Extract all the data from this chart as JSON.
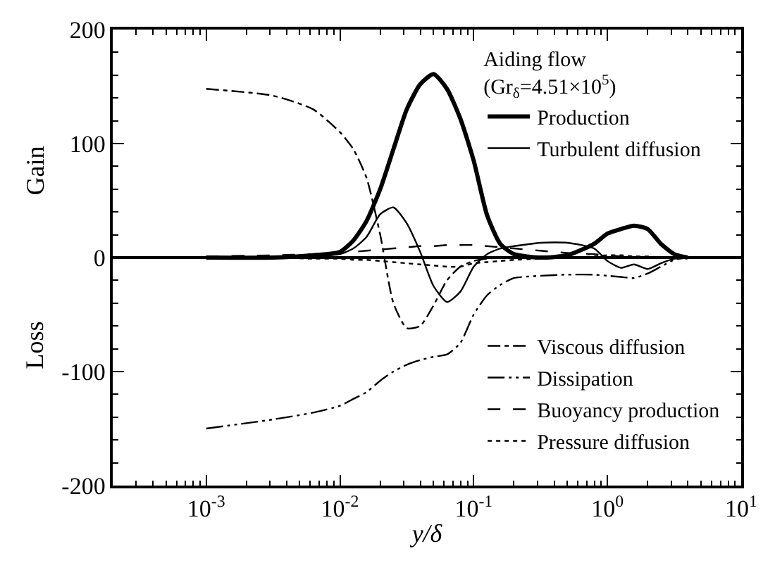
{
  "chart_data": {
    "type": "line",
    "xlabel": "y/δ",
    "legend_title": "Aiding flow\n(Gr$_{δ}$=4.51×10$^{5}$)",
    "log": "x",
    "xlim": [
      0.0002,
      10
    ],
    "xticks": [
      {
        "value": 0.001,
        "label": "10$^{-3}$"
      },
      {
        "value": 0.01,
        "label": "10$^{-2}$"
      },
      {
        "value": 0.1,
        "label": "10$^{-1}$"
      },
      {
        "value": 1,
        "label": "10$^{0}$"
      },
      {
        "value": 10,
        "label": "10$^{1}$"
      }
    ],
    "ylim": [
      -200,
      200
    ],
    "yticks": [
      -200,
      -100,
      0,
      100,
      200
    ],
    "grid": false,
    "legend": "right",
    "annotations": [
      "Gain",
      "Loss"
    ],
    "ref_lines": [
      {
        "axis": "y",
        "value": 0,
        "label": null,
        "color": "#000000"
      }
    ],
    "x": [
      0.001,
      0.00316,
      0.00631,
      0.01,
      0.0126,
      0.0158,
      0.02,
      0.0251,
      0.0316,
      0.0398,
      0.0501,
      0.0631,
      0.0794,
      0.1,
      0.126,
      0.158,
      0.2,
      0.316,
      0.501,
      0.794,
      1,
      1.26,
      1.58,
      2,
      2.51,
      3.16,
      3.98
    ],
    "series": [
      {
        "name": "Production",
        "color": "#000000",
        "line_style": "solid",
        "values": [
          0,
          0,
          2,
          5,
          15,
          32,
          60,
          95,
          130,
          152,
          161,
          148,
          122,
          85,
          37,
          12,
          3,
          0,
          2,
          12,
          21,
          25,
          28,
          25,
          12,
          3,
          0
        ]
      },
      {
        "name": "Turbulent diffusion",
        "color": "#000000",
        "line_style": "solid",
        "values": [
          0,
          0,
          1,
          3,
          8,
          18,
          38,
          44,
          30,
          5,
          -25,
          -39,
          -30,
          -8,
          3,
          8,
          10,
          13,
          13,
          8,
          -3,
          -9,
          -6,
          -10,
          -5,
          -1,
          0
        ]
      },
      {
        "name": "Viscous diffusion",
        "color": "#000000",
        "line_style": "dashdot",
        "values": [
          148,
          142,
          130,
          110,
          95,
          70,
          20,
          -40,
          -62,
          -60,
          -42,
          -20,
          -8,
          -3,
          -1,
          0,
          0,
          0,
          0,
          0,
          0,
          0,
          0,
          0,
          0,
          0,
          0
        ]
      },
      {
        "name": "Dissipation",
        "color": "#000000",
        "line_style": "dashdotdot",
        "values": [
          -150,
          -142,
          -136,
          -130,
          -124,
          -118,
          -108,
          -100,
          -94,
          -90,
          -87,
          -85,
          -75,
          -50,
          -33,
          -24,
          -18,
          -16,
          -15,
          -15,
          -16,
          -17,
          -18,
          -14,
          -8,
          -2,
          0
        ]
      },
      {
        "name": "Buoyancy production",
        "color": "#000000",
        "line_style": "dashed",
        "values": [
          1,
          2,
          3,
          4,
          5,
          6,
          7,
          8,
          9,
          10,
          10,
          11,
          11,
          11,
          10,
          9,
          8,
          6,
          4,
          3,
          2,
          1,
          1,
          0,
          0,
          0,
          0
        ]
      },
      {
        "name": "Pressure diffusion",
        "color": "#000000",
        "line_style": "dotted",
        "values": [
          0,
          0,
          -1,
          -1,
          -2,
          -2,
          -3,
          -4,
          -5,
          -6,
          -7,
          -8,
          -8,
          -5,
          -4,
          -3,
          -2,
          -1,
          0,
          1,
          2,
          2,
          1,
          1,
          0,
          0,
          null
        ]
      }
    ]
  }
}
